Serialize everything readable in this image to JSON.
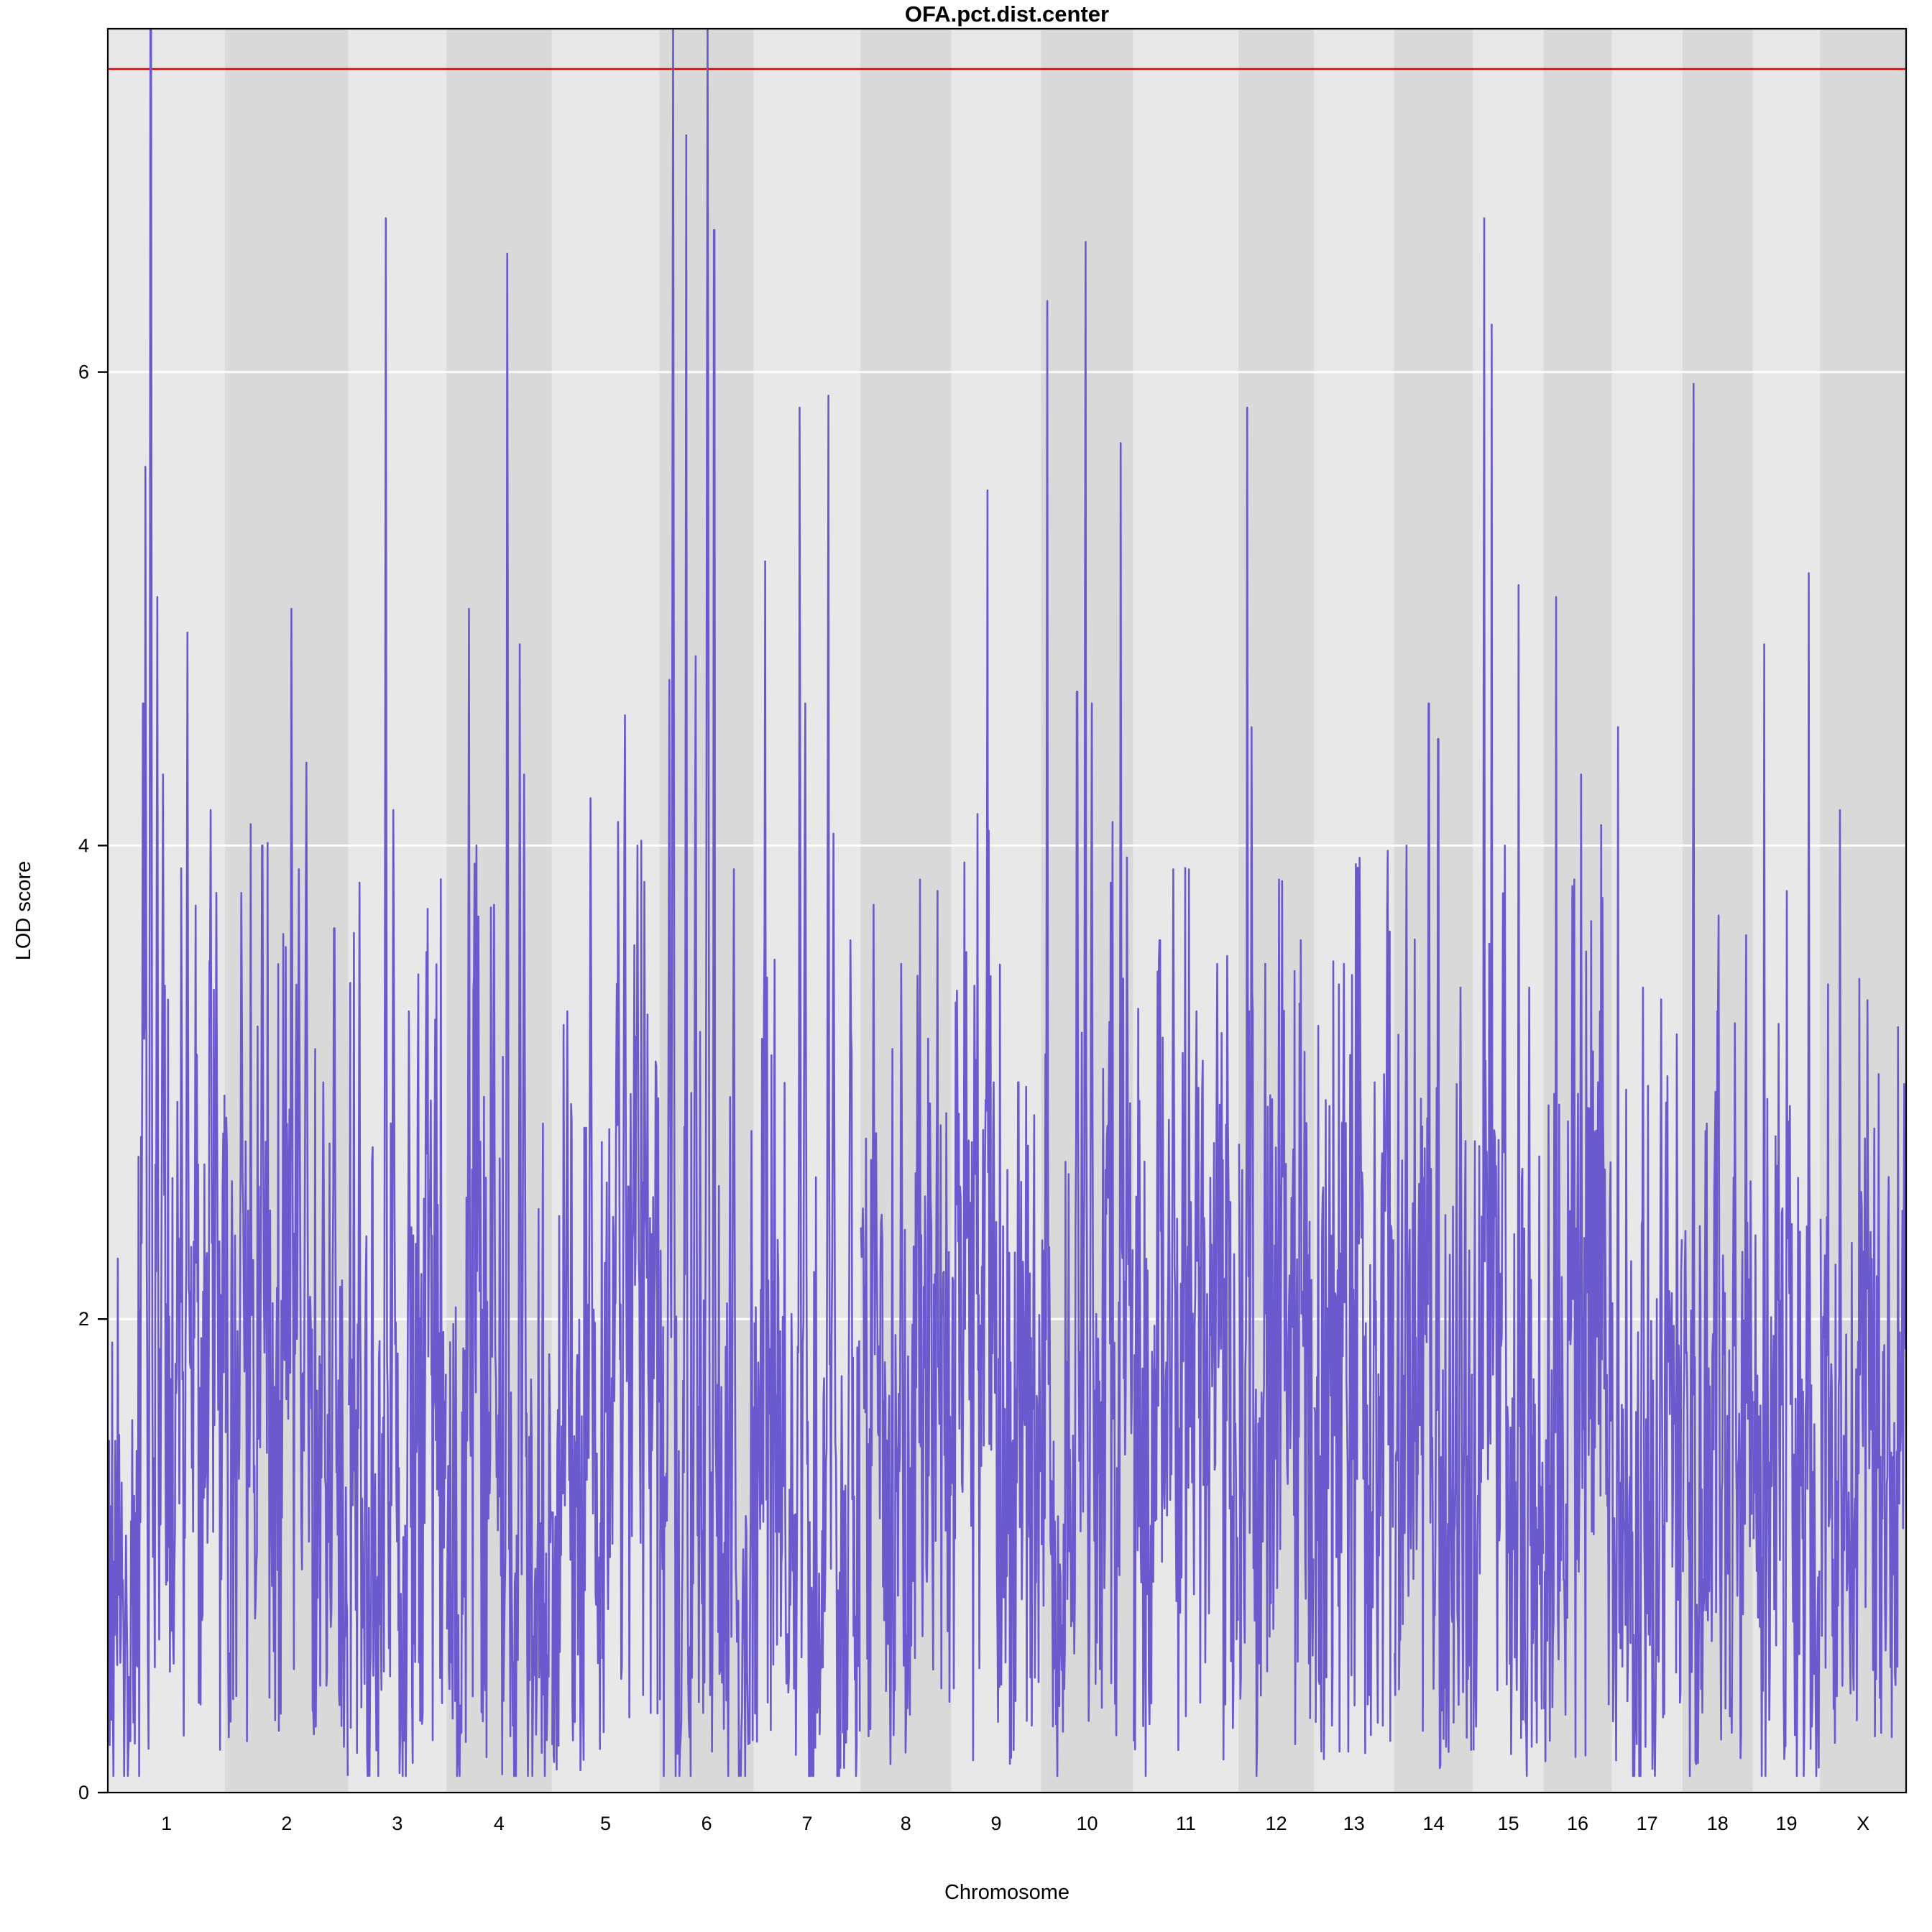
{
  "chart_data": {
    "type": "line",
    "title": "OFA.pct.dist.center",
    "xlabel": "Chromosome",
    "ylabel": "LOD score",
    "ylim": [
      0,
      7.45
    ],
    "yticks": [
      0,
      2,
      4,
      6
    ],
    "grid": "white horizontal gridlines at y ticks",
    "legend": "none",
    "background": "#ffffff",
    "plot_border_color": "#000000",
    "series_color": "#6a5acd",
    "band_colors": [
      "#e8e8e8",
      "#d9d9d9"
    ],
    "threshold": {
      "lod": 7.28,
      "color": "#e00000",
      "meaning": "significance threshold line"
    },
    "chromosomes": [
      {
        "label": "1",
        "length_cm": 98,
        "peaks": [
          {
            "pos": 0.3,
            "lod": 4.6
          },
          {
            "pos": 0.32,
            "lod": 5.6,
            "width": 0.02
          },
          {
            "pos": 0.365,
            "lod": 8.3,
            "width": 0.02,
            "clipped": true
          },
          {
            "pos": 0.42,
            "lod": 5.05,
            "width": 0.02
          },
          {
            "pos": 0.47,
            "lod": 4.3
          },
          {
            "pos": 0.68,
            "lod": 4.9,
            "width": 0.022
          },
          {
            "pos": 0.88,
            "lod": 4.15
          },
          {
            "pos": 0.93,
            "lod": 3.8
          }
        ]
      },
      {
        "label": "2",
        "length_cm": 103,
        "peaks": [
          {
            "pos": 0.13,
            "lod": 3.8
          },
          {
            "pos": 0.3,
            "lod": 4.0
          },
          {
            "pos": 0.54,
            "lod": 5.0,
            "width": 0.022
          },
          {
            "pos": 0.6,
            "lod": 3.9
          },
          {
            "pos": 0.66,
            "lod": 4.35
          },
          {
            "pos": 0.8,
            "lod": 3.0
          },
          {
            "pos": 0.89,
            "lod": 3.65
          }
        ]
      },
      {
        "label": "3",
        "length_cm": 82,
        "peaks": [
          {
            "pos": 0.38,
            "lod": 6.65,
            "width": 0.022
          },
          {
            "pos": 0.46,
            "lod": 4.15
          },
          {
            "pos": 0.62,
            "lod": 3.3
          },
          {
            "pos": 0.8,
            "lod": 3.55
          }
        ]
      },
      {
        "label": "4",
        "length_cm": 88,
        "peaks": [
          {
            "pos": 0.21,
            "lod": 5.0,
            "width": 0.022
          },
          {
            "pos": 0.3,
            "lod": 3.7
          },
          {
            "pos": 0.45,
            "lod": 3.75
          },
          {
            "pos": 0.58,
            "lod": 6.5,
            "width": 0.022
          },
          {
            "pos": 0.7,
            "lod": 4.85,
            "width": 0.022
          },
          {
            "pos": 0.74,
            "lod": 4.3
          }
        ]
      },
      {
        "label": "5",
        "length_cm": 90,
        "peaks": [
          {
            "pos": 0.14,
            "lod": 3.3
          },
          {
            "pos": 0.36,
            "lod": 4.2
          },
          {
            "pos": 0.62,
            "lod": 4.1
          },
          {
            "pos": 0.68,
            "lod": 4.55
          },
          {
            "pos": 0.8,
            "lod": 4.0
          }
        ]
      },
      {
        "label": "6",
        "length_cm": 79,
        "peaks": [
          {
            "pos": 0.1,
            "lod": 4.7
          },
          {
            "pos": 0.14,
            "lod": 8.3,
            "width": 0.025,
            "clipped": true
          },
          {
            "pos": 0.28,
            "lod": 7.0,
            "width": 0.02
          },
          {
            "pos": 0.38,
            "lod": 4.8
          },
          {
            "pos": 0.51,
            "lod": 8.3,
            "width": 0.03,
            "clipped": true
          },
          {
            "pos": 0.58,
            "lod": 6.6,
            "width": 0.02
          },
          {
            "pos": 0.79,
            "lod": 3.9
          }
        ]
      },
      {
        "label": "7",
        "length_cm": 89,
        "peaks": [
          {
            "pos": 0.1,
            "lod": 5.2,
            "width": 0.02
          },
          {
            "pos": 0.43,
            "lod": 5.85,
            "width": 0.02
          },
          {
            "pos": 0.48,
            "lod": 4.6
          },
          {
            "pos": 0.7,
            "lod": 5.9,
            "width": 0.02
          },
          {
            "pos": 0.75,
            "lod": 4.05
          },
          {
            "pos": 0.91,
            "lod": 3.6
          }
        ]
      },
      {
        "label": "8",
        "length_cm": 76,
        "peaks": [
          {
            "pos": 0.14,
            "lod": 3.75
          },
          {
            "pos": 0.45,
            "lod": 3.5
          },
          {
            "pos": 0.63,
            "lod": 3.45
          },
          {
            "pos": 0.85,
            "lod": 2.9
          }
        ]
      },
      {
        "label": "9",
        "length_cm": 75,
        "peaks": [
          {
            "pos": 0.16,
            "lod": 3.55
          },
          {
            "pos": 0.4,
            "lod": 5.5,
            "width": 0.02
          },
          {
            "pos": 0.47,
            "lod": 3.0
          },
          {
            "pos": 0.75,
            "lod": 3.0
          }
        ]
      },
      {
        "label": "10",
        "length_cm": 77,
        "peaks": [
          {
            "pos": 0.06,
            "lod": 6.3,
            "width": 0.02
          },
          {
            "pos": 0.39,
            "lod": 4.65
          },
          {
            "pos": 0.48,
            "lod": 6.55,
            "width": 0.022
          },
          {
            "pos": 0.55,
            "lod": 4.6
          },
          {
            "pos": 0.87,
            "lod": 5.7,
            "width": 0.02
          },
          {
            "pos": 0.94,
            "lod": 3.95
          }
        ]
      },
      {
        "label": "11",
        "length_cm": 88,
        "peaks": [
          {
            "pos": 0.25,
            "lod": 3.6
          },
          {
            "pos": 0.38,
            "lod": 3.9
          },
          {
            "pos": 0.6,
            "lod": 3.3
          },
          {
            "pos": 0.8,
            "lod": 3.5
          }
        ]
      },
      {
        "label": "12",
        "length_cm": 63,
        "peaks": [
          {
            "pos": 0.11,
            "lod": 5.85,
            "width": 0.022
          },
          {
            "pos": 0.17,
            "lod": 4.5
          },
          {
            "pos": 0.35,
            "lod": 3.5
          },
          {
            "pos": 0.58,
            "lod": 3.85
          },
          {
            "pos": 0.83,
            "lod": 3.3
          }
        ]
      },
      {
        "label": "13",
        "length_cm": 67,
        "peaks": [
          {
            "pos": 0.19,
            "lod": 2.9
          },
          {
            "pos": 0.37,
            "lod": 3.5
          },
          {
            "pos": 0.58,
            "lod": 3.2
          },
          {
            "pos": 0.76,
            "lod": 3.0
          }
        ]
      },
      {
        "label": "14",
        "length_cm": 66,
        "peaks": [
          {
            "pos": 0.15,
            "lod": 4.0
          },
          {
            "pos": 0.44,
            "lod": 4.6,
            "width": 0.022
          },
          {
            "pos": 0.56,
            "lod": 4.45,
            "width": 0.022
          },
          {
            "pos": 0.85,
            "lod": 3.4
          }
        ]
      },
      {
        "label": "15",
        "length_cm": 59,
        "peaks": [
          {
            "pos": 0.15,
            "lod": 6.65,
            "width": 0.022
          },
          {
            "pos": 0.26,
            "lod": 6.2,
            "width": 0.02
          },
          {
            "pos": 0.45,
            "lod": 4.0
          },
          {
            "pos": 0.65,
            "lod": 5.1,
            "width": 0.02
          },
          {
            "pos": 0.8,
            "lod": 3.4
          }
        ]
      },
      {
        "label": "16",
        "length_cm": 57,
        "peaks": [
          {
            "pos": 0.18,
            "lod": 5.05,
            "width": 0.02
          },
          {
            "pos": 0.55,
            "lod": 4.3
          },
          {
            "pos": 0.8,
            "lod": 3.0
          }
        ]
      },
      {
        "label": "17",
        "length_cm": 59,
        "peaks": [
          {
            "pos": 0.08,
            "lod": 4.5,
            "width": 0.02
          },
          {
            "pos": 0.44,
            "lod": 3.4
          },
          {
            "pos": 0.7,
            "lod": 3.35
          }
        ]
      },
      {
        "label": "18",
        "length_cm": 59,
        "peaks": [
          {
            "pos": 0.15,
            "lod": 5.95,
            "width": 0.02
          },
          {
            "pos": 0.5,
            "lod": 3.3
          },
          {
            "pos": 0.75,
            "lod": 3.25
          }
        ]
      },
      {
        "label": "19",
        "length_cm": 56,
        "peaks": [
          {
            "pos": 0.16,
            "lod": 4.85,
            "width": 0.02
          },
          {
            "pos": 0.55,
            "lod": 2.9
          },
          {
            "pos": 0.84,
            "lod": 5.15,
            "width": 0.02
          }
        ]
      },
      {
        "label": "X",
        "length_cm": 72,
        "noise": 0.85,
        "peaks": [
          {
            "pos": 0.23,
            "lod": 4.15,
            "width": 0.02
          },
          {
            "pos": 0.55,
            "lod": 2.75
          },
          {
            "pos": 0.8,
            "lod": 2.6
          }
        ]
      }
    ]
  }
}
